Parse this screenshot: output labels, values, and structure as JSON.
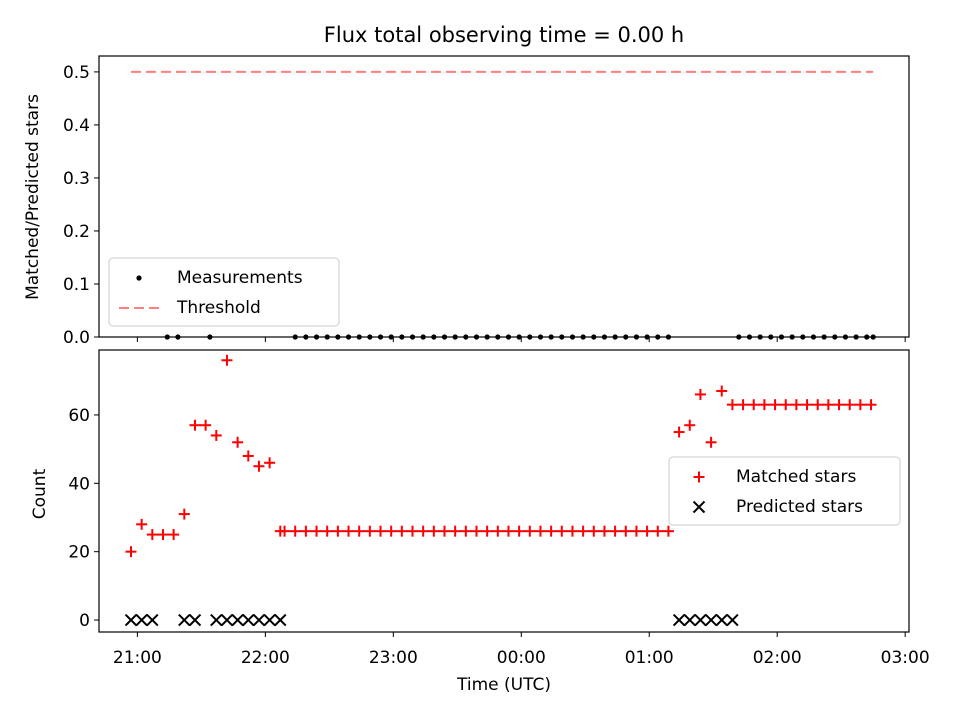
{
  "chart_data": [
    {
      "type": "scatter",
      "title": "Flux total observing time = 0.00 h",
      "xlabel": "",
      "ylabel": "Matched/Predicted stars",
      "ylim": [
        0,
        0.53
      ],
      "yticks": [
        0.0,
        0.1,
        0.2,
        0.3,
        0.4,
        0.5
      ],
      "ytick_labels": [
        "0.0",
        "0.1",
        "0.2",
        "0.3",
        "0.4",
        "0.5"
      ],
      "xlim_hours": [
        20.7,
        27.03
      ],
      "x_is_time_of_day_utc": true,
      "legend": {
        "position": "lower-left",
        "entries": [
          "Measurements",
          "Threshold"
        ]
      },
      "threshold": {
        "name": "Threshold",
        "value": 0.5,
        "x_start": "20:57",
        "x_end": "02:45",
        "color": "#ff7f7f",
        "style": "dashed"
      },
      "series": [
        {
          "name": "Measurements",
          "color": "#000000",
          "marker": "dot",
          "x": [
            "21:14",
            "21:19",
            "21:34",
            "22:14",
            "22:19",
            "22:24",
            "22:29",
            "22:34",
            "22:39",
            "22:44",
            "22:49",
            "22:54",
            "22:59",
            "23:04",
            "23:09",
            "23:14",
            "23:19",
            "23:24",
            "23:29",
            "23:34",
            "23:39",
            "23:44",
            "23:49",
            "23:54",
            "23:59",
            "00:04",
            "00:09",
            "00:14",
            "00:19",
            "00:24",
            "00:29",
            "00:34",
            "00:39",
            "00:44",
            "00:49",
            "00:54",
            "00:59",
            "01:04",
            "01:09",
            "01:42",
            "01:47",
            "01:52",
            "01:57",
            "02:02",
            "02:07",
            "02:12",
            "02:17",
            "02:22",
            "02:27",
            "02:32",
            "02:37",
            "02:42",
            "02:45"
          ],
          "y": [
            0,
            0,
            0,
            0,
            0,
            0,
            0,
            0,
            0,
            0,
            0,
            0,
            0,
            0,
            0,
            0,
            0,
            0,
            0,
            0,
            0,
            0,
            0,
            0,
            0,
            0,
            0,
            0,
            0,
            0,
            0,
            0,
            0,
            0,
            0,
            0,
            0,
            0,
            0,
            0,
            0,
            0,
            0,
            0,
            0,
            0,
            0,
            0,
            0,
            0,
            0,
            0,
            0
          ]
        }
      ]
    },
    {
      "type": "scatter",
      "title": "",
      "xlabel": "Time (UTC)",
      "ylabel": "Count",
      "ylim": [
        -3.5,
        79
      ],
      "yticks": [
        0,
        20,
        40,
        60
      ],
      "ytick_labels": [
        "0",
        "20",
        "40",
        "60"
      ],
      "xlim_hours": [
        20.7,
        27.03
      ],
      "xticks_hours": [
        21,
        22,
        23,
        24,
        25,
        26,
        27
      ],
      "xtick_labels": [
        "21:00",
        "22:00",
        "23:00",
        "00:00",
        "01:00",
        "02:00",
        "03:00"
      ],
      "legend": {
        "position": "center-right",
        "entries": [
          "Matched stars",
          "Predicted stars"
        ]
      },
      "series": [
        {
          "name": "Matched stars",
          "color": "#ff0000",
          "marker": "plus",
          "x": [
            "20:57",
            "21:02",
            "21:07",
            "21:12",
            "21:17",
            "21:22",
            "21:27",
            "21:32",
            "21:37",
            "21:42",
            "21:47",
            "21:52",
            "21:57",
            "22:02",
            "22:07",
            "22:09",
            "22:14",
            "22:19",
            "22:24",
            "22:29",
            "22:34",
            "22:39",
            "22:44",
            "22:49",
            "22:54",
            "22:59",
            "23:04",
            "23:09",
            "23:14",
            "23:19",
            "23:24",
            "23:29",
            "23:34",
            "23:39",
            "23:44",
            "23:49",
            "23:54",
            "23:59",
            "00:04",
            "00:09",
            "00:14",
            "00:19",
            "00:24",
            "00:29",
            "00:34",
            "00:39",
            "00:44",
            "00:49",
            "00:54",
            "00:59",
            "01:04",
            "01:09",
            "01:14",
            "01:19",
            "01:24",
            "01:29",
            "01:34",
            "01:39",
            "01:44",
            "01:49",
            "01:54",
            "01:59",
            "02:04",
            "02:09",
            "02:14",
            "02:19",
            "02:24",
            "02:29",
            "02:34",
            "02:39",
            "02:44"
          ],
          "y": [
            20,
            28,
            25,
            25,
            25,
            31,
            57,
            57,
            54,
            76,
            52,
            48,
            45,
            46,
            26,
            26,
            26,
            26,
            26,
            26,
            26,
            26,
            26,
            26,
            26,
            26,
            26,
            26,
            26,
            26,
            26,
            26,
            26,
            26,
            26,
            26,
            26,
            26,
            26,
            26,
            26,
            26,
            26,
            26,
            26,
            26,
            26,
            26,
            26,
            26,
            26,
            26,
            55,
            57,
            66,
            52,
            67,
            63,
            63,
            63,
            63,
            63,
            63,
            63,
            63,
            63,
            63,
            63,
            63,
            63,
            63
          ]
        },
        {
          "name": "Predicted stars",
          "color": "#000000",
          "marker": "x",
          "x": [
            "20:57",
            "21:02",
            "21:07",
            "21:22",
            "21:27",
            "21:37",
            "21:42",
            "21:47",
            "21:52",
            "21:57",
            "22:02",
            "22:07",
            "01:14",
            "01:19",
            "01:24",
            "01:29",
            "01:34",
            "01:39"
          ],
          "y": [
            0,
            0,
            0,
            0,
            0,
            0,
            0,
            0,
            0,
            0,
            0,
            0,
            0,
            0,
            0,
            0,
            0,
            0
          ]
        }
      ]
    }
  ]
}
